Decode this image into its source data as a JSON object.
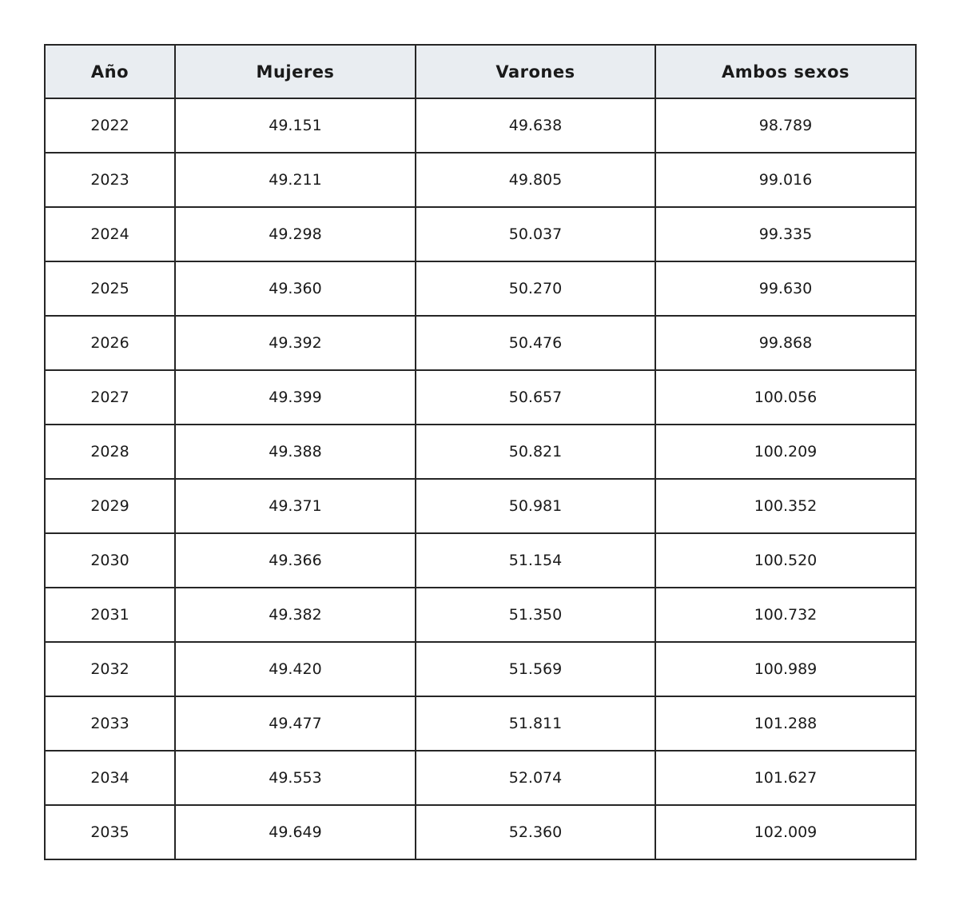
{
  "chart_data": {
    "type": "table",
    "title": "",
    "columns": [
      "Año",
      "Mujeres",
      "Varones",
      "Ambos sexos"
    ],
    "rows": [
      [
        "2022",
        "49.151",
        "49.638",
        "98.789"
      ],
      [
        "2023",
        "49.211",
        "49.805",
        "99.016"
      ],
      [
        "2024",
        "49.298",
        "50.037",
        "99.335"
      ],
      [
        "2025",
        "49.360",
        "50.270",
        "99.630"
      ],
      [
        "2026",
        "49.392",
        "50.476",
        "99.868"
      ],
      [
        "2027",
        "49.399",
        "50.657",
        "100.056"
      ],
      [
        "2028",
        "49.388",
        "50.821",
        "100.209"
      ],
      [
        "2029",
        "49.371",
        "50.981",
        "100.352"
      ],
      [
        "2030",
        "49.366",
        "51.154",
        "100.520"
      ],
      [
        "2031",
        "49.382",
        "51.350",
        "100.732"
      ],
      [
        "2032",
        "49.420",
        "51.569",
        "100.989"
      ],
      [
        "2033",
        "49.477",
        "51.811",
        "101.288"
      ],
      [
        "2034",
        "49.553",
        "52.074",
        "101.627"
      ],
      [
        "2035",
        "49.649",
        "52.360",
        "102.009"
      ]
    ]
  },
  "colors": {
    "header_bg": "#e9edf1",
    "border": "#262626",
    "text": "#1a1a1a",
    "row_bg": "#ffffff"
  }
}
